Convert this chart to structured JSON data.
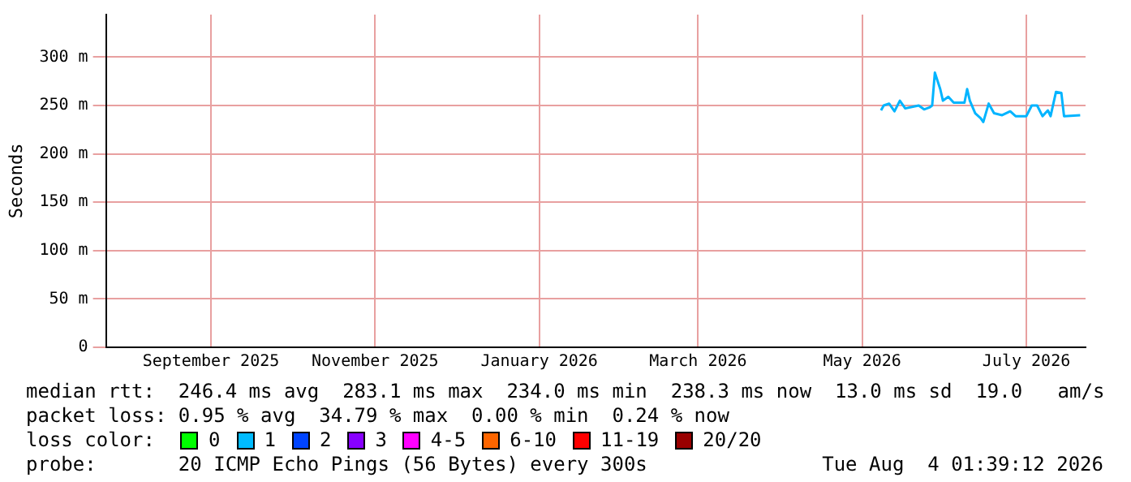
{
  "chart_data": {
    "type": "line",
    "ylabel": "Seconds",
    "x": [
      "2026-05-08",
      "2026-05-09",
      "2026-05-11",
      "2026-05-13",
      "2026-05-15",
      "2026-05-17",
      "2026-05-22",
      "2026-05-24",
      "2026-05-26",
      "2026-05-27",
      "2026-05-28",
      "2026-05-30",
      "2026-05-31",
      "2026-06-02",
      "2026-06-04",
      "2026-06-08",
      "2026-06-09",
      "2026-06-10",
      "2026-06-12",
      "2026-06-14",
      "2026-06-15",
      "2026-06-17",
      "2026-06-19",
      "2026-06-22",
      "2026-06-25",
      "2026-06-27",
      "2026-07-01",
      "2026-07-03",
      "2026-07-05",
      "2026-07-07",
      "2026-07-09",
      "2026-07-10",
      "2026-07-12",
      "2026-07-14",
      "2026-07-15",
      "2026-07-21"
    ],
    "series": [
      {
        "color": "#00b4ff",
        "values": [
          245,
          250,
          252,
          244,
          255,
          247,
          250,
          246,
          248,
          250,
          284,
          267,
          255,
          259,
          253,
          253,
          267,
          255,
          242,
          237,
          233,
          252,
          242,
          240,
          244,
          239,
          239,
          250,
          250,
          239,
          245,
          239,
          264,
          263,
          239,
          240
        ]
      }
    ],
    "xlim": [
      "2025-07-24",
      "2026-07-23"
    ],
    "xticks": [
      {
        "value": "2025-09-01",
        "label": "September 2025"
      },
      {
        "value": "2025-11-01",
        "label": "November 2025"
      },
      {
        "value": "2026-01-01",
        "label": "January 2026"
      },
      {
        "value": "2026-03-01",
        "label": "March 2026"
      },
      {
        "value": "2026-05-01",
        "label": "May 2026"
      },
      {
        "value": "2026-07-01",
        "label": "July 2026"
      }
    ],
    "ylim": [
      0,
      344
    ],
    "yticks": [
      {
        "value": 0,
        "label": "0"
      },
      {
        "value": 50,
        "label": "50 m"
      },
      {
        "value": 100,
        "label": "100 m"
      },
      {
        "value": 150,
        "label": "150 m"
      },
      {
        "value": 200,
        "label": "200 m"
      },
      {
        "value": 250,
        "label": "250 m"
      },
      {
        "value": 300,
        "label": "300 m"
      }
    ],
    "grid": true,
    "marker": "none",
    "line_style": "solid",
    "legend": false,
    "annotations": [
      "median rtt:  246.4 ms avg  283.1 ms max  234.0 ms min  238.3 ms now  13.0 ms sd  19.0   am/s",
      "packet loss: 0.95 % avg  34.79 % max  0.00 % min  0.24 % now",
      "loss color:",
      "0",
      "1",
      "2",
      "3",
      "4-5",
      "6-10",
      "11-19",
      "20/20",
      "probe:       20 ICMP Echo Pings (56 Bytes) every 300s",
      "Tue Aug  4 01:39:12 2026"
    ]
  }
}
